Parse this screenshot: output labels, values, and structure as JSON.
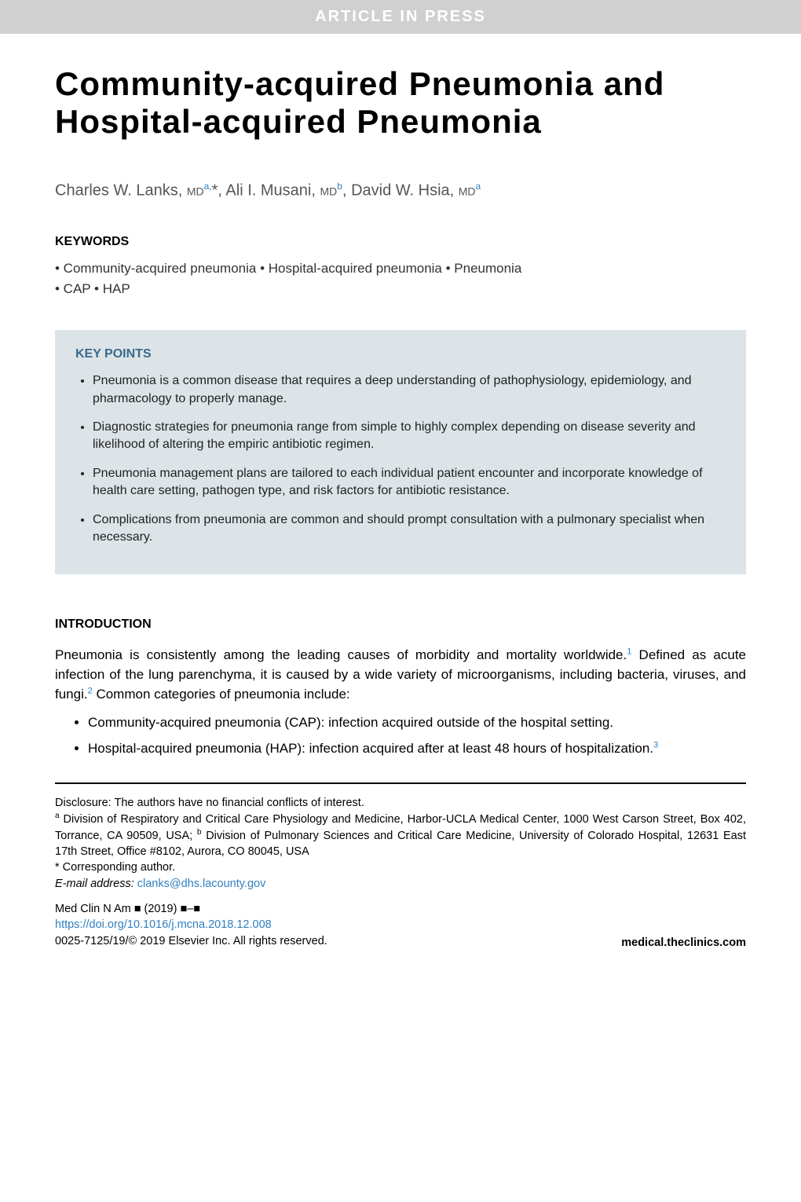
{
  "banner": "ARTICLE IN PRESS",
  "title": "Community-acquired Pneumonia and Hospital-acquired Pneumonia",
  "authors_html": "Charles W. Lanks, <span class='mdlabel'>MD</span><span class='sup'>a,</span>*, Ali I. Musani, <span class='mdlabel'>MD</span><span class='sup'>b</span>, David W. Hsia, <span class='mdlabel'>MD</span><span class='sup'>a</span>",
  "keywords": {
    "heading": "KEYWORDS",
    "line1": "• Community-acquired pneumonia • Hospital-acquired pneumonia • Pneumonia",
    "line2": "• CAP • HAP"
  },
  "keypoints": {
    "heading": "KEY POINTS",
    "items": [
      "Pneumonia is a common disease that requires a deep understanding of pathophysiology, epidemiology, and pharmacology to properly manage.",
      "Diagnostic strategies for pneumonia range from simple to highly complex depending on disease severity and likelihood of altering the empiric antibiotic regimen.",
      "Pneumonia management plans are tailored to each individual patient encounter and incorporate knowledge of health care setting, pathogen type, and risk factors for antibiotic resistance.",
      "Complications from pneumonia are common and should prompt consultation with a pulmonary specialist when necessary."
    ]
  },
  "intro": {
    "heading": "INTRODUCTION",
    "para_html": "Pneumonia is consistently among the leading causes of morbidity and mortality worldwide.<span class='sup'>1</span> Defined as acute infection of the lung parenchyma, it is caused by a wide variety of microorganisms, including bacteria, viruses, and fungi.<span class='sup'>2</span> Common categories of pneumonia include:",
    "bullets_html": [
      "Community-acquired pneumonia (CAP): infection acquired outside of the hospital setting.",
      "Hospital-acquired pneumonia (HAP): infection acquired after at least 48 hours of hospitalization.<span class='sup'>3</span>"
    ]
  },
  "footer": {
    "disclosure": "Disclosure: The authors have no financial conflicts of interest.",
    "affiliations_html": "<span class='sup'>a</span> Division of Respiratory and Critical Care Physiology and Medicine, Harbor-UCLA Medical Center, 1000 West Carson Street, Box 402, Torrance, CA 90509, USA; <span class='sup'>b</span> Division of Pulmonary Sciences and Critical Care Medicine, University of Colorado Hospital, 12631 East 17th Street, Office #8102, Aurora, CO 80045, USA",
    "corresponding": "* Corresponding author.",
    "email_label": "E-mail address:",
    "email": "clanks@dhs.lacounty.gov",
    "journal": "Med Clin N Am ■ (2019) ■–■",
    "doi": "https://doi.org/10.1016/j.mcna.2018.12.008",
    "copyright": "0025-7125/19/© 2019 Elsevier Inc. All rights reserved.",
    "site": "medical.theclinics.com"
  },
  "colors": {
    "banner_bg": "#d0d0d0",
    "banner_fg": "#ffffff",
    "keypoints_bg": "#dce4e8",
    "keypoints_heading": "#3a6a8a",
    "link": "#3080c0",
    "text": "#000000",
    "authors": "#555555"
  },
  "fonts": {
    "title_size_pt": 32,
    "body_size_pt": 13,
    "footer_size_pt": 11
  }
}
